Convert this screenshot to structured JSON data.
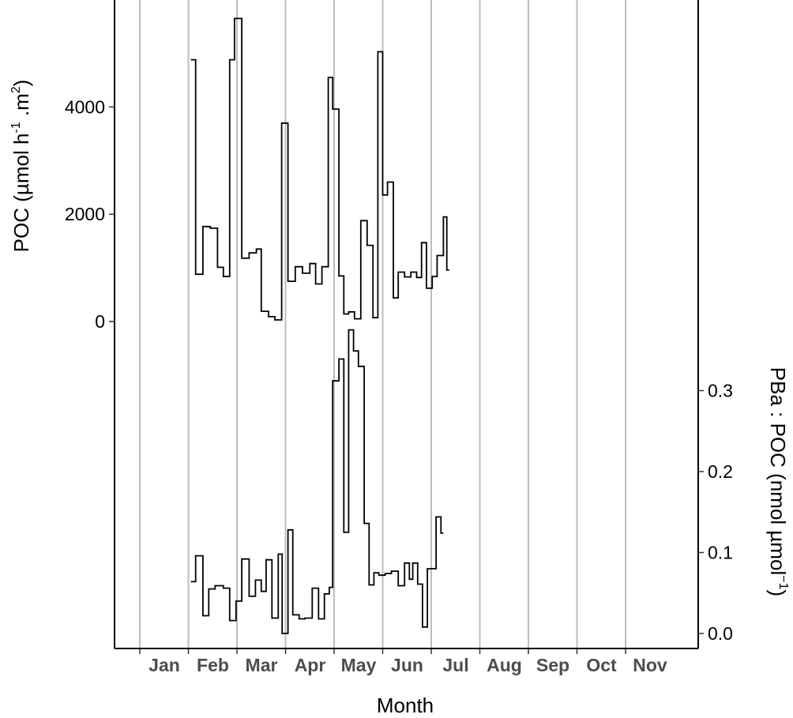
{
  "chart_data": {
    "type": "line",
    "xlabel": "Month",
    "x_tick_labels": [
      "Jan",
      "Feb",
      "Mar",
      "Apr",
      "May",
      "Jun",
      "Jul",
      "Aug",
      "Sep",
      "Oct",
      "Nov"
    ],
    "grid": "vertical monthly lines",
    "panels": [
      {
        "name": "top",
        "ylabel": "POC (µmol h-1 .m2)",
        "ylabel_parts": {
          "main": "POC (µmol h",
          "sup1": "-1",
          "mid": " .m",
          "sup2": "2",
          "end": ")"
        },
        "y_axis_side": "left",
        "y_ticks": [
          0,
          2000,
          4000
        ],
        "y_tick_labels": [
          "0",
          "2000",
          "4000"
        ],
        "step_series": [
          [
            2.05,
            4880
          ],
          [
            2.15,
            880
          ],
          [
            2.3,
            1770
          ],
          [
            2.45,
            1740
          ],
          [
            2.6,
            1010
          ],
          [
            2.72,
            840
          ],
          [
            2.85,
            4880
          ],
          [
            2.95,
            5650
          ],
          [
            3.1,
            1180
          ],
          [
            3.25,
            1280
          ],
          [
            3.4,
            1350
          ],
          [
            3.5,
            190
          ],
          [
            3.65,
            90
          ],
          [
            3.78,
            30
          ],
          [
            3.92,
            3700
          ],
          [
            4.05,
            750
          ],
          [
            4.2,
            1020
          ],
          [
            4.35,
            900
          ],
          [
            4.5,
            1080
          ],
          [
            4.62,
            700
          ],
          [
            4.75,
            1020
          ],
          [
            4.88,
            4550
          ],
          [
            4.97,
            3960
          ],
          [
            5.1,
            850
          ],
          [
            5.2,
            140
          ],
          [
            5.3,
            180
          ],
          [
            5.42,
            50
          ],
          [
            5.55,
            1880
          ],
          [
            5.68,
            1420
          ],
          [
            5.8,
            70
          ],
          [
            5.9,
            5030
          ],
          [
            6.0,
            2360
          ],
          [
            6.1,
            2600
          ],
          [
            6.22,
            440
          ],
          [
            6.32,
            920
          ],
          [
            6.45,
            830
          ],
          [
            6.58,
            920
          ],
          [
            6.7,
            820
          ],
          [
            6.8,
            1470
          ],
          [
            6.9,
            620
          ],
          [
            7.02,
            840
          ],
          [
            7.12,
            1230
          ],
          [
            7.25,
            1950
          ],
          [
            7.32,
            960
          ]
        ]
      },
      {
        "name": "bottom",
        "ylabel": "PBa : POC (nmol µmol-1)",
        "ylabel_parts": {
          "main": "PBa : POC (nmol µmol",
          "sup1": "−1",
          "end": ")"
        },
        "y_axis_side": "right",
        "y_ticks": [
          0.0,
          0.1,
          0.2,
          0.3
        ],
        "y_tick_labels": [
          "0.0",
          "0.1",
          "0.2",
          "0.3"
        ],
        "step_series": [
          [
            2.05,
            0.064
          ],
          [
            2.15,
            0.096
          ],
          [
            2.3,
            0.022
          ],
          [
            2.42,
            0.055
          ],
          [
            2.55,
            0.059
          ],
          [
            2.72,
            0.056
          ],
          [
            2.85,
            0.016
          ],
          [
            2.98,
            0.04
          ],
          [
            3.1,
            0.092
          ],
          [
            3.25,
            0.046
          ],
          [
            3.38,
            0.066
          ],
          [
            3.5,
            0.052
          ],
          [
            3.6,
            0.091
          ],
          [
            3.72,
            0.019
          ],
          [
            3.85,
            0.098
          ],
          [
            3.93,
            0.0
          ],
          [
            4.05,
            0.128
          ],
          [
            4.15,
            0.023
          ],
          [
            4.28,
            0.018
          ],
          [
            4.4,
            0.019
          ],
          [
            4.55,
            0.056
          ],
          [
            4.68,
            0.018
          ],
          [
            4.8,
            0.049
          ],
          [
            4.9,
            0.057
          ],
          [
            4.97,
            0.312
          ],
          [
            5.1,
            0.339
          ],
          [
            5.2,
            0.125
          ],
          [
            5.3,
            0.375
          ],
          [
            5.4,
            0.349
          ],
          [
            5.5,
            0.33
          ],
          [
            5.62,
            0.136
          ],
          [
            5.72,
            0.06
          ],
          [
            5.82,
            0.075
          ],
          [
            5.92,
            0.072
          ],
          [
            6.05,
            0.074
          ],
          [
            6.18,
            0.077
          ],
          [
            6.32,
            0.059
          ],
          [
            6.45,
            0.087
          ],
          [
            6.55,
            0.067
          ],
          [
            6.62,
            0.087
          ],
          [
            6.72,
            0.061
          ],
          [
            6.82,
            0.008
          ],
          [
            6.92,
            0.08
          ],
          [
            7.1,
            0.144
          ],
          [
            7.2,
            0.124
          ]
        ]
      }
    ]
  }
}
